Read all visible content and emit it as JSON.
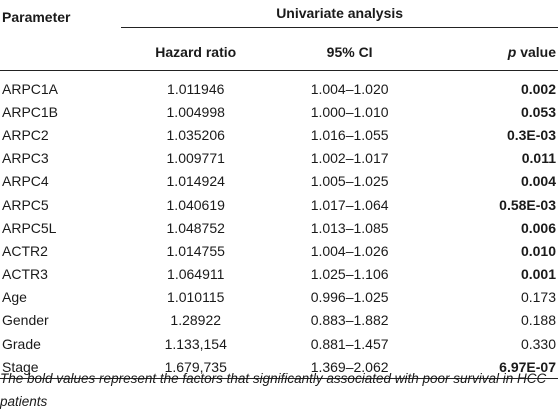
{
  "table": {
    "header": {
      "parameter": "Parameter",
      "group": "Univariate analysis",
      "hazard_ratio": "Hazard ratio",
      "ci": "95% CI",
      "p_letter": "p",
      "p_word": "value"
    },
    "rows": [
      {
        "parameter": "ARPC1A",
        "hazard_ratio": "1.011946",
        "ci": "1.004–1.020",
        "p_value": "0.002",
        "bold": true
      },
      {
        "parameter": "ARPC1B",
        "hazard_ratio": "1.004998",
        "ci": "1.000–1.010",
        "p_value": "0.053",
        "bold": true
      },
      {
        "parameter": "ARPC2",
        "hazard_ratio": "1.035206",
        "ci": "1.016–1.055",
        "p_value": "0.3E-03",
        "bold": true
      },
      {
        "parameter": "ARPC3",
        "hazard_ratio": "1.009771",
        "ci": "1.002–1.017",
        "p_value": "0.011",
        "bold": true
      },
      {
        "parameter": "ARPC4",
        "hazard_ratio": "1.014924",
        "ci": "1.005–1.025",
        "p_value": "0.004",
        "bold": true
      },
      {
        "parameter": "ARPC5",
        "hazard_ratio": "1.040619",
        "ci": "1.017–1.064",
        "p_value": "0.58E-03",
        "bold": true
      },
      {
        "parameter": "ARPC5L",
        "hazard_ratio": "1.048752",
        "ci": "1.013–1.085",
        "p_value": "0.006",
        "bold": true
      },
      {
        "parameter": "ACTR2",
        "hazard_ratio": "1.014755",
        "ci": "1.004–1.026",
        "p_value": "0.010",
        "bold": true
      },
      {
        "parameter": "ACTR3",
        "hazard_ratio": "1.064911",
        "ci": "1.025–1.106",
        "p_value": "0.001",
        "bold": true
      },
      {
        "parameter": "Age",
        "hazard_ratio": "1.010115",
        "ci": "0.996–1.025",
        "p_value": "0.173",
        "bold": false
      },
      {
        "parameter": "Gender",
        "hazard_ratio": "1.28922",
        "ci": "0.883–1.882",
        "p_value": "0.188",
        "bold": false
      },
      {
        "parameter": "Grade",
        "hazard_ratio": "1.133,154",
        "ci": "0.881–1.457",
        "p_value": "0.330",
        "bold": false
      },
      {
        "parameter": "Stage",
        "hazard_ratio": "1.679,735",
        "ci": "1.369–2.062",
        "p_value": "6.97E-07",
        "bold": true
      }
    ]
  },
  "footnote": "The bold values represent the factors that significantly associated with poor survival in HCC patients"
}
